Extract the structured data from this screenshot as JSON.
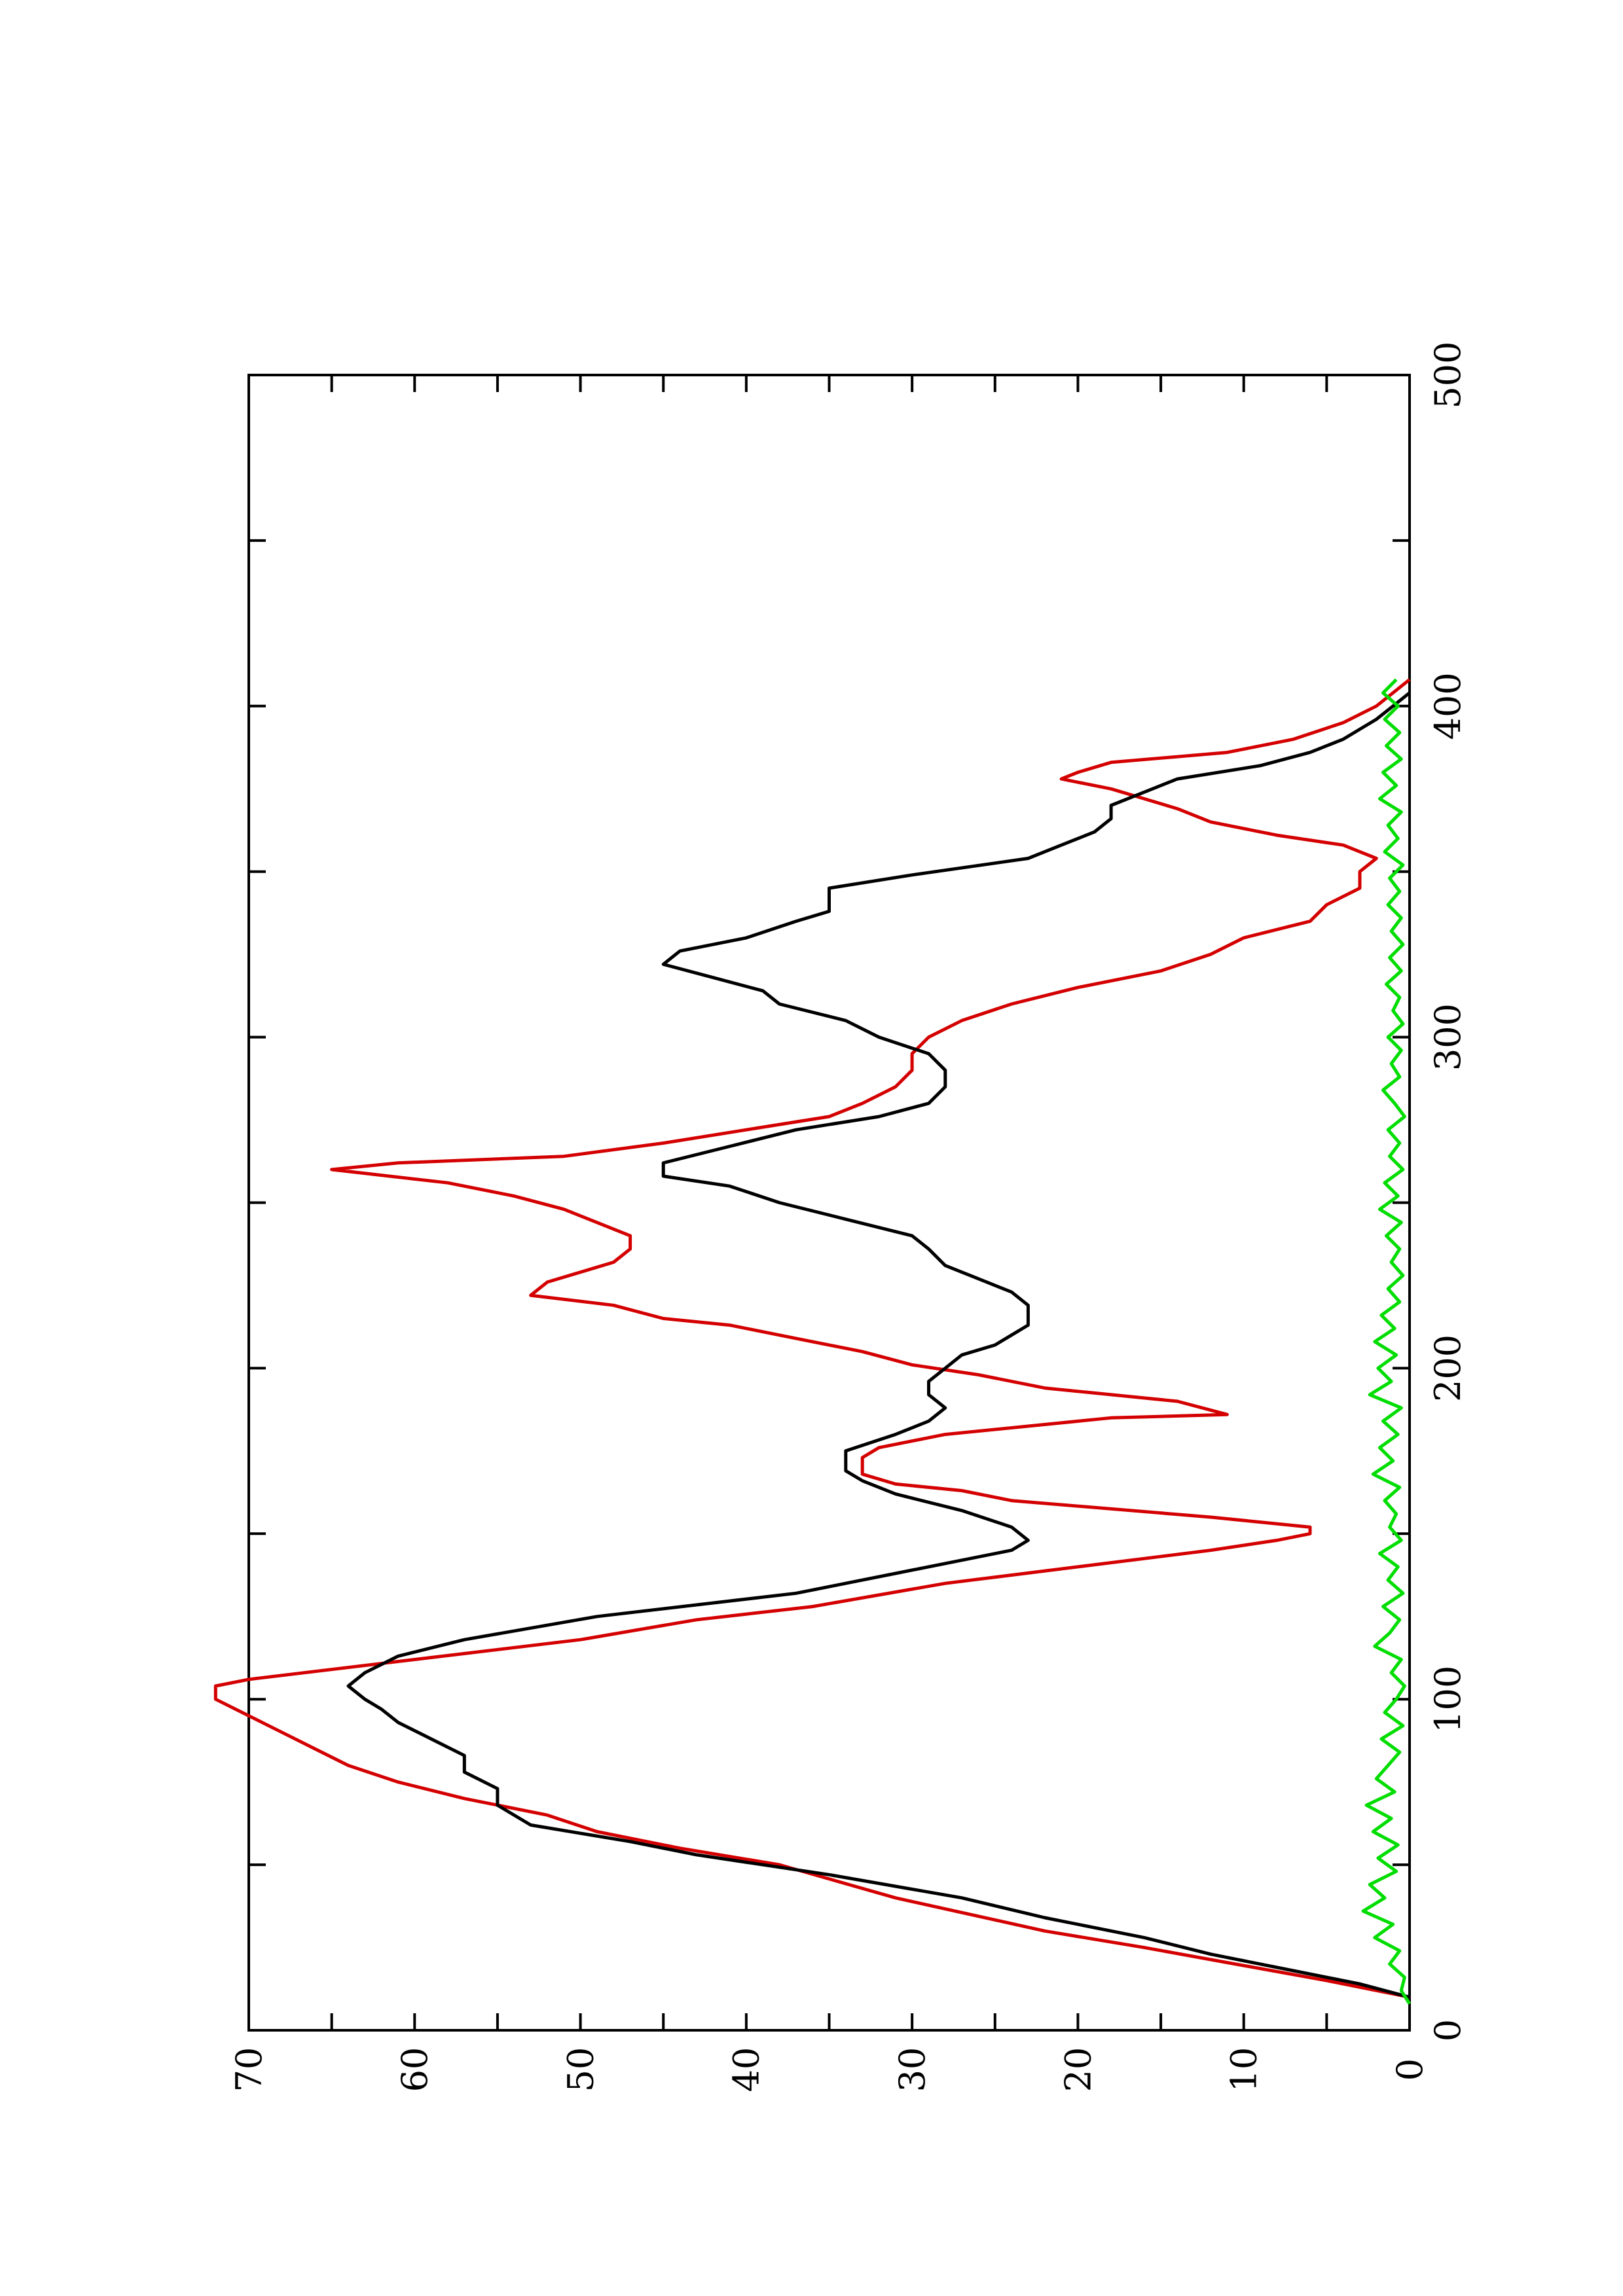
{
  "chart_data": {
    "type": "line",
    "title": "",
    "xlabel": "",
    "ylabel": "",
    "xlim": [
      0,
      500
    ],
    "ylim": [
      0,
      70
    ],
    "x_ticks": [
      0,
      100,
      200,
      300,
      400,
      500
    ],
    "x_minor_ticks": [
      50,
      150,
      250,
      350,
      450
    ],
    "y_ticks": [
      0,
      10,
      20,
      30,
      40,
      50,
      60,
      70
    ],
    "y_minor_ticks": [
      5,
      15,
      25,
      35,
      45,
      55,
      65
    ],
    "grid": false,
    "legend": "none",
    "orientation": "rotated-90-counterclockwise",
    "series": [
      {
        "color": "#d40000",
        "points": [
          [
            10,
            0
          ],
          [
            15,
            5
          ],
          [
            25,
            16
          ],
          [
            30,
            22
          ],
          [
            40,
            31
          ],
          [
            50,
            38
          ],
          [
            55,
            44
          ],
          [
            60,
            49
          ],
          [
            65,
            52
          ],
          [
            70,
            57
          ],
          [
            75,
            61
          ],
          [
            80,
            64
          ],
          [
            85,
            66
          ],
          [
            90,
            68
          ],
          [
            95,
            70
          ],
          [
            100,
            72
          ],
          [
            102,
            72
          ],
          [
            104,
            72
          ],
          [
            106,
            70
          ],
          [
            112,
            60
          ],
          [
            118,
            50
          ],
          [
            124,
            43
          ],
          [
            128,
            36
          ],
          [
            135,
            28
          ],
          [
            140,
            20
          ],
          [
            145,
            12
          ],
          [
            148,
            8
          ],
          [
            150,
            6
          ],
          [
            152,
            6
          ],
          [
            155,
            12
          ],
          [
            160,
            24
          ],
          [
            163,
            27
          ],
          [
            165,
            31
          ],
          [
            168,
            33
          ],
          [
            171,
            33
          ],
          [
            173,
            33
          ],
          [
            176,
            32
          ],
          [
            180,
            28
          ],
          [
            185,
            18
          ],
          [
            186,
            11
          ],
          [
            190,
            14
          ],
          [
            194,
            22
          ],
          [
            198,
            26
          ],
          [
            201,
            30
          ],
          [
            205,
            33
          ],
          [
            209,
            37
          ],
          [
            213,
            41
          ],
          [
            215,
            45
          ],
          [
            219,
            48
          ],
          [
            222,
            53
          ],
          [
            226,
            52
          ],
          [
            229,
            50
          ],
          [
            232,
            48
          ],
          [
            236,
            47
          ],
          [
            240,
            47
          ],
          [
            244,
            49
          ],
          [
            248,
            51
          ],
          [
            252,
            54
          ],
          [
            256,
            58
          ],
          [
            260,
            65
          ],
          [
            262,
            61
          ],
          [
            264,
            51
          ],
          [
            268,
            45
          ],
          [
            272,
            40
          ],
          [
            276,
            35
          ],
          [
            280,
            33
          ],
          [
            285,
            31
          ],
          [
            290,
            30
          ],
          [
            295,
            30
          ],
          [
            300,
            29
          ],
          [
            305,
            27
          ],
          [
            310,
            24
          ],
          [
            315,
            20
          ],
          [
            320,
            15
          ],
          [
            325,
            12
          ],
          [
            330,
            10
          ],
          [
            335,
            6
          ],
          [
            340,
            5
          ],
          [
            345,
            3
          ],
          [
            350,
            3
          ],
          [
            354,
            2
          ],
          [
            358,
            4
          ],
          [
            361,
            8
          ],
          [
            365,
            12
          ],
          [
            369,
            14
          ],
          [
            372,
            16
          ],
          [
            375,
            18
          ],
          [
            378,
            21
          ],
          [
            380,
            20
          ],
          [
            383,
            18
          ],
          [
            386,
            11
          ],
          [
            390,
            7
          ],
          [
            395,
            4
          ],
          [
            400,
            2
          ],
          [
            404,
            1
          ],
          [
            408,
            0
          ]
        ]
      },
      {
        "color": "#000000",
        "points": [
          [
            10,
            0
          ],
          [
            14,
            3
          ],
          [
            18,
            7
          ],
          [
            23,
            12
          ],
          [
            28,
            16
          ],
          [
            34,
            22
          ],
          [
            40,
            27
          ],
          [
            47,
            35
          ],
          [
            53,
            43
          ],
          [
            57,
            47
          ],
          [
            62,
            53
          ],
          [
            68,
            55
          ],
          [
            73,
            55
          ],
          [
            78,
            57
          ],
          [
            83,
            57
          ],
          [
            88,
            59
          ],
          [
            93,
            61
          ],
          [
            97,
            62
          ],
          [
            100,
            63
          ],
          [
            104,
            64
          ],
          [
            108,
            63
          ],
          [
            113,
            61
          ],
          [
            118,
            57
          ],
          [
            125,
            49
          ],
          [
            132,
            37
          ],
          [
            138,
            31
          ],
          [
            145,
            24
          ],
          [
            148,
            23
          ],
          [
            152,
            24
          ],
          [
            157,
            27
          ],
          [
            162,
            31
          ],
          [
            166,
            33
          ],
          [
            169,
            34
          ],
          [
            171,
            34
          ],
          [
            175,
            34
          ],
          [
            180,
            31
          ],
          [
            184,
            29
          ],
          [
            188,
            28
          ],
          [
            192,
            29
          ],
          [
            196,
            29
          ],
          [
            200,
            28
          ],
          [
            204,
            27
          ],
          [
            207,
            25
          ],
          [
            210,
            24
          ],
          [
            213,
            23
          ],
          [
            216,
            23
          ],
          [
            219,
            23
          ],
          [
            223,
            24
          ],
          [
            227,
            26
          ],
          [
            231,
            28
          ],
          [
            236,
            29
          ],
          [
            240,
            30
          ],
          [
            245,
            34
          ],
          [
            250,
            38
          ],
          [
            255,
            41
          ],
          [
            258,
            45
          ],
          [
            262,
            45
          ],
          [
            267,
            41
          ],
          [
            272,
            37
          ],
          [
            276,
            32
          ],
          [
            280,
            29
          ],
          [
            285,
            28
          ],
          [
            290,
            28
          ],
          [
            295,
            29
          ],
          [
            300,
            32
          ],
          [
            305,
            34
          ],
          [
            310,
            38
          ],
          [
            314,
            39
          ],
          [
            318,
            42
          ],
          [
            322,
            45
          ],
          [
            326,
            44
          ],
          [
            330,
            40
          ],
          [
            335,
            37
          ],
          [
            338,
            35
          ],
          [
            342,
            35
          ],
          [
            345,
            35
          ],
          [
            349,
            30
          ],
          [
            354,
            23
          ],
          [
            358,
            21
          ],
          [
            362,
            19
          ],
          [
            366,
            18
          ],
          [
            370,
            18
          ],
          [
            374,
            16
          ],
          [
            378,
            14
          ],
          [
            382,
            9
          ],
          [
            386,
            6
          ],
          [
            390,
            4
          ],
          [
            396,
            2
          ],
          [
            400,
            1
          ],
          [
            404,
            0
          ]
        ]
      },
      {
        "color": "#00dd00",
        "points": [
          [
            8,
            0
          ],
          [
            12,
            0.5
          ],
          [
            16,
            0.3
          ],
          [
            20,
            1.2
          ],
          [
            24,
            0.6
          ],
          [
            28,
            2.1
          ],
          [
            32,
            1.0
          ],
          [
            36,
            2.8
          ],
          [
            40,
            1.5
          ],
          [
            44,
            2.4
          ],
          [
            48,
            0.8
          ],
          [
            52,
            1.9
          ],
          [
            56,
            0.7
          ],
          [
            60,
            2.2
          ],
          [
            64,
            1.1
          ],
          [
            68,
            2.6
          ],
          [
            72,
            0.9
          ],
          [
            76,
            2.0
          ],
          [
            80,
            1.3
          ],
          [
            84,
            0.6
          ],
          [
            88,
            1.7
          ],
          [
            92,
            0.4
          ],
          [
            96,
            1.5
          ],
          [
            100,
            0.8
          ],
          [
            104,
            0.3
          ],
          [
            108,
            1.1
          ],
          [
            112,
            0.5
          ],
          [
            116,
            2.1
          ],
          [
            120,
            1.2
          ],
          [
            124,
            0.6
          ],
          [
            128,
            1.6
          ],
          [
            132,
            0.4
          ],
          [
            136,
            1.3
          ],
          [
            140,
            0.7
          ],
          [
            144,
            1.8
          ],
          [
            148,
            0.5
          ],
          [
            152,
            1.2
          ],
          [
            156,
            0.8
          ],
          [
            160,
            1.5
          ],
          [
            164,
            0.6
          ],
          [
            168,
            2.2
          ],
          [
            172,
            1.0
          ],
          [
            176,
            1.8
          ],
          [
            180,
            0.7
          ],
          [
            184,
            1.6
          ],
          [
            188,
            0.5
          ],
          [
            192,
            2.4
          ],
          [
            196,
            1.1
          ],
          [
            200,
            1.9
          ],
          [
            204,
            0.8
          ],
          [
            208,
            2.1
          ],
          [
            212,
            0.9
          ],
          [
            216,
            1.7
          ],
          [
            220,
            0.6
          ],
          [
            224,
            1.3
          ],
          [
            228,
            0.4
          ],
          [
            232,
            1.1
          ],
          [
            236,
            0.6
          ],
          [
            240,
            1.4
          ],
          [
            244,
            0.5
          ],
          [
            248,
            1.8
          ],
          [
            252,
            0.7
          ],
          [
            256,
            1.5
          ],
          [
            260,
            0.4
          ],
          [
            264,
            1.2
          ],
          [
            268,
            0.6
          ],
          [
            272,
            1.3
          ],
          [
            276,
            0.3
          ],
          [
            280,
            0.9
          ],
          [
            284,
            1.6
          ],
          [
            288,
            0.6
          ],
          [
            292,
            1.1
          ],
          [
            296,
            0.5
          ],
          [
            300,
            1.3
          ],
          [
            304,
            0.4
          ],
          [
            308,
            1.0
          ],
          [
            312,
            0.6
          ],
          [
            316,
            1.4
          ],
          [
            320,
            0.5
          ],
          [
            324,
            1.2
          ],
          [
            328,
            0.4
          ],
          [
            332,
            1.1
          ],
          [
            336,
            0.5
          ],
          [
            340,
            1.3
          ],
          [
            344,
            0.6
          ],
          [
            348,
            1.2
          ],
          [
            352,
            0.4
          ],
          [
            356,
            1.5
          ],
          [
            360,
            0.7
          ],
          [
            364,
            1.3
          ],
          [
            368,
            0.5
          ],
          [
            372,
            1.8
          ],
          [
            376,
            0.8
          ],
          [
            380,
            1.6
          ],
          [
            384,
            0.5
          ],
          [
            388,
            1.4
          ],
          [
            392,
            0.6
          ],
          [
            396,
            1.5
          ],
          [
            400,
            0.7
          ],
          [
            404,
            1.6
          ],
          [
            408,
            0.8
          ]
        ]
      }
    ]
  }
}
